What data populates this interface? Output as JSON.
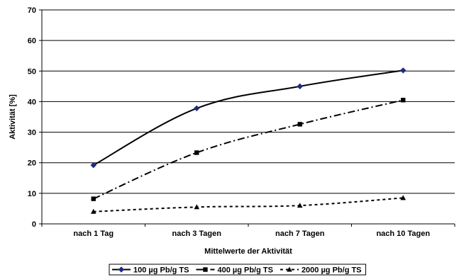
{
  "chart_data": {
    "type": "line",
    "categories": [
      "nach 1 Tag",
      "nach 3 Tagen",
      "nach 7 Tagen",
      "nach 10 Tagen"
    ],
    "series": [
      {
        "name": "100 µg Pb/g TS",
        "values": [
          19.2,
          37.8,
          45.0,
          50.2
        ],
        "color": "#000000",
        "marker": "diamond",
        "marker_color": "#1f2a80",
        "dash": "solid"
      },
      {
        "name": "400 µg Pb/g TS",
        "values": [
          8.2,
          23.3,
          32.6,
          40.5
        ],
        "color": "#000000",
        "marker": "square",
        "marker_color": "#000000",
        "dash": "dashdot"
      },
      {
        "name": "2000 µg Pb/g TS",
        "values": [
          4.0,
          5.5,
          6.0,
          8.5
        ],
        "color": "#000000",
        "marker": "triangle",
        "marker_color": "#000000",
        "dash": "dotted"
      }
    ],
    "xlabel": "Mittelwerte der Aktivität",
    "ylabel": "Aktivität [%]",
    "ylim": [
      0,
      70
    ],
    "yticks": [
      0,
      10,
      20,
      30,
      40,
      50,
      60,
      70
    ],
    "grid": "horizontal",
    "legend_position": "bottom"
  }
}
